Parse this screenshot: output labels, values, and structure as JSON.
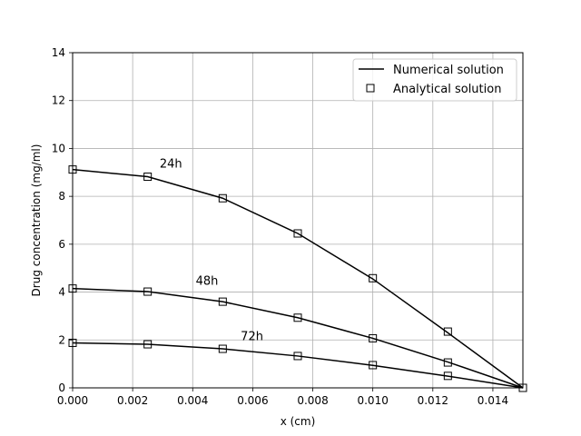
{
  "chart_data": {
    "type": "line",
    "xlabel": "x (cm)",
    "ylabel": "Drug concentration (mg/ml)",
    "xlim": [
      0,
      0.015
    ],
    "ylim": [
      0,
      14
    ],
    "xticks": [
      "0.000",
      "0.002",
      "0.004",
      "0.006",
      "0.008",
      "0.010",
      "0.012",
      "0.014"
    ],
    "xtick_values": [
      0,
      0.002,
      0.004,
      0.006,
      0.008,
      0.01,
      0.012,
      0.014
    ],
    "yticks": [
      "0",
      "2",
      "4",
      "6",
      "8",
      "10",
      "12",
      "14"
    ],
    "ytick_values": [
      0,
      2,
      4,
      6,
      8,
      10,
      12,
      14
    ],
    "grid": true,
    "legend_position": "top-right",
    "legend": [
      {
        "label": "Numerical solution",
        "marker": "line"
      },
      {
        "label": "Analytical solution",
        "marker": "square"
      }
    ],
    "series": [
      {
        "time_label": "24h",
        "numerical": {
          "x": [
            0,
            0.0025,
            0.005,
            0.0075,
            0.01,
            0.0125,
            0.015
          ],
          "y": [
            9.12,
            8.82,
            7.92,
            6.45,
            4.55,
            2.3,
            0.0
          ]
        },
        "analytical": {
          "x": [
            0,
            0.0025,
            0.005,
            0.0075,
            0.01,
            0.0125,
            0.015
          ],
          "y": [
            9.12,
            8.82,
            7.92,
            6.45,
            4.58,
            2.35,
            0.0
          ]
        }
      },
      {
        "time_label": "48h",
        "numerical": {
          "x": [
            0,
            0.0025,
            0.005,
            0.0075,
            0.01,
            0.0125,
            0.015
          ],
          "y": [
            4.15,
            4.02,
            3.6,
            2.93,
            2.07,
            1.08,
            0.0
          ]
        },
        "analytical": {
          "x": [
            0,
            0.0025,
            0.005,
            0.0075,
            0.01,
            0.0125,
            0.015
          ],
          "y": [
            4.15,
            4.02,
            3.6,
            2.93,
            2.07,
            1.06,
            0.0
          ]
        }
      },
      {
        "time_label": "72h",
        "numerical": {
          "x": [
            0,
            0.0025,
            0.005,
            0.0075,
            0.01,
            0.0125,
            0.015
          ],
          "y": [
            1.88,
            1.82,
            1.63,
            1.33,
            0.94,
            0.49,
            0.0
          ]
        },
        "analytical": {
          "x": [
            0,
            0.0025,
            0.005,
            0.0075,
            0.01,
            0.0125,
            0.015
          ],
          "y": [
            1.88,
            1.82,
            1.63,
            1.33,
            0.95,
            0.5,
            0.0
          ]
        }
      }
    ],
    "annotations": [
      {
        "text": "24h",
        "x": 0.0029,
        "y": 9.2
      },
      {
        "text": "48h",
        "x": 0.0041,
        "y": 4.3
      },
      {
        "text": "72h",
        "x": 0.0056,
        "y": 2.0
      }
    ]
  }
}
